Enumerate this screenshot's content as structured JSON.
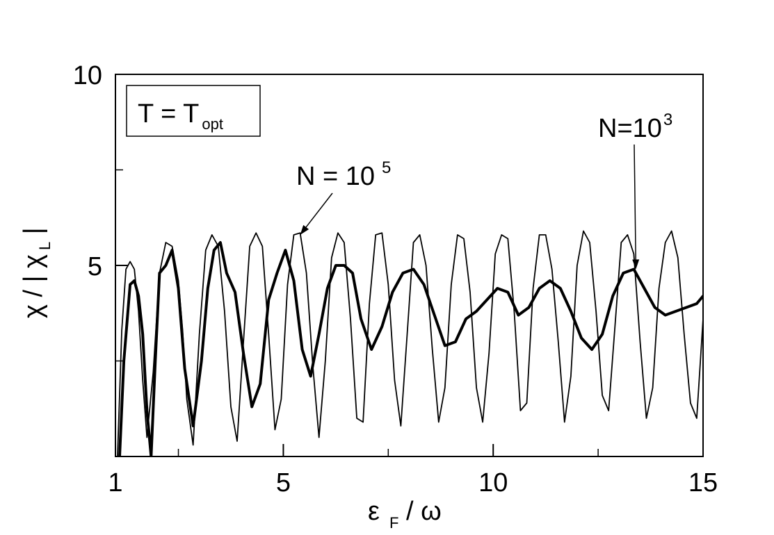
{
  "chart_data": {
    "type": "line",
    "xlim": [
      1,
      15
    ],
    "ylim": [
      0,
      10
    ],
    "grid": false,
    "x_ticks_major": [
      {
        "value": 1,
        "label": "1"
      },
      {
        "value": 5,
        "label": "5"
      },
      {
        "value": 10,
        "label": "10"
      },
      {
        "value": 15,
        "label": "15"
      }
    ],
    "x_ticks_minor": [
      2.5,
      7.5,
      12.5
    ],
    "y_ticks_major": [
      {
        "value": 5,
        "label": "5"
      },
      {
        "value": 10,
        "label": "10"
      }
    ],
    "y_ticks_minor": [
      2.5,
      7.5
    ],
    "xlabel": {
      "main": "ε",
      "sub": "F",
      "rest": " / ω"
    },
    "ylabel": {
      "main": "χ / | χ",
      "sub": "L",
      "rest": " |"
    },
    "legend_box": {
      "text": "T = T",
      "sub": "opt",
      "placement": "top-left"
    },
    "annotations": [
      {
        "text": "N = 10",
        "sup": "5",
        "points_to": [
          5.4,
          5.8
        ]
      },
      {
        "text": "N=10",
        "sup": "3",
        "points_to": [
          13.4,
          4.9
        ]
      }
    ],
    "series": [
      {
        "line_style": "thin",
        "x": [
          1.05,
          1.15,
          1.25,
          1.35,
          1.45,
          1.55,
          1.65,
          1.75,
          1.9,
          2.05,
          2.2,
          2.35,
          2.5,
          2.6,
          2.7,
          2.85,
          3.0,
          3.15,
          3.3,
          3.45,
          3.6,
          3.75,
          3.9,
          4.05,
          4.2,
          4.35,
          4.5,
          4.65,
          4.8,
          4.95,
          5.1,
          5.25,
          5.4,
          5.55,
          5.7,
          5.85,
          6.0,
          6.15,
          6.3,
          6.45,
          6.6,
          6.75,
          6.9,
          7.05,
          7.2,
          7.35,
          7.5,
          7.65,
          7.8,
          7.95,
          8.1,
          8.25,
          8.4,
          8.55,
          8.7,
          8.85,
          9.0,
          9.15,
          9.3,
          9.45,
          9.6,
          9.75,
          9.9,
          10.05,
          10.2,
          10.35,
          10.5,
          10.65,
          10.8,
          10.95,
          11.1,
          11.25,
          11.4,
          11.55,
          11.7,
          11.85,
          12.0,
          12.15,
          12.3,
          12.45,
          12.6,
          12.75,
          12.9,
          13.05,
          13.2,
          13.35,
          13.5,
          13.65,
          13.8,
          13.95,
          14.1,
          14.25,
          14.4,
          14.55,
          14.7,
          14.85,
          15.0
        ],
        "y": [
          0.0,
          3.3,
          4.9,
          5.1,
          4.9,
          3.8,
          2.0,
          0.5,
          2.2,
          4.8,
          5.6,
          5.5,
          4.6,
          3.3,
          1.5,
          0.3,
          3.2,
          5.4,
          5.8,
          5.5,
          3.8,
          1.3,
          0.4,
          3.0,
          5.5,
          5.85,
          5.5,
          3.2,
          0.7,
          1.5,
          4.5,
          5.8,
          5.85,
          4.8,
          2.4,
          0.5,
          2.5,
          5.2,
          5.85,
          5.6,
          3.6,
          1.0,
          0.9,
          4.0,
          5.8,
          5.85,
          4.5,
          2.0,
          0.8,
          3.2,
          5.6,
          5.8,
          5.0,
          2.8,
          0.9,
          1.8,
          4.5,
          5.8,
          5.7,
          4.3,
          1.8,
          0.9,
          2.7,
          5.3,
          5.8,
          5.7,
          3.8,
          1.2,
          1.4,
          4.4,
          5.8,
          5.8,
          4.9,
          3.0,
          0.9,
          2.1,
          5.0,
          5.9,
          5.6,
          3.8,
          1.6,
          1.2,
          3.4,
          5.6,
          5.8,
          5.3,
          3.0,
          1.0,
          1.8,
          4.4,
          5.6,
          5.9,
          5.2,
          3.2,
          1.4,
          1.0,
          3.6
        ]
      },
      {
        "line_style": "thick",
        "x": [
          1.1,
          1.2,
          1.35,
          1.45,
          1.55,
          1.65,
          1.75,
          1.85,
          1.95,
          2.05,
          2.2,
          2.35,
          2.5,
          2.65,
          2.85,
          3.05,
          3.2,
          3.35,
          3.5,
          3.65,
          3.85,
          4.05,
          4.25,
          4.45,
          4.65,
          4.85,
          5.05,
          5.25,
          5.45,
          5.65,
          5.85,
          6.05,
          6.25,
          6.45,
          6.65,
          6.85,
          7.1,
          7.35,
          7.6,
          7.85,
          8.1,
          8.35,
          8.6,
          8.85,
          9.1,
          9.35,
          9.6,
          9.85,
          10.1,
          10.35,
          10.6,
          10.85,
          11.1,
          11.35,
          11.6,
          11.85,
          12.1,
          12.35,
          12.6,
          12.85,
          13.1,
          13.35,
          13.6,
          13.85,
          14.1,
          14.35,
          14.6,
          14.85,
          15.0
        ],
        "y": [
          0.0,
          2.5,
          4.5,
          4.6,
          4.2,
          3.2,
          1.2,
          0.0,
          2.5,
          4.8,
          5.0,
          5.4,
          4.4,
          2.3,
          0.8,
          2.5,
          4.4,
          5.4,
          5.6,
          4.8,
          4.3,
          2.7,
          1.3,
          1.9,
          4.1,
          4.8,
          5.4,
          4.6,
          2.8,
          2.1,
          3.2,
          4.4,
          5.0,
          5.0,
          4.8,
          3.6,
          2.8,
          3.4,
          4.3,
          4.8,
          4.9,
          4.5,
          3.7,
          2.9,
          3.0,
          3.6,
          3.8,
          4.1,
          4.4,
          4.3,
          3.7,
          3.9,
          4.4,
          4.6,
          4.4,
          3.8,
          3.1,
          2.8,
          3.2,
          4.2,
          4.8,
          4.9,
          4.4,
          3.9,
          3.7,
          3.8,
          3.9,
          4.0,
          4.2
        ]
      }
    ]
  }
}
